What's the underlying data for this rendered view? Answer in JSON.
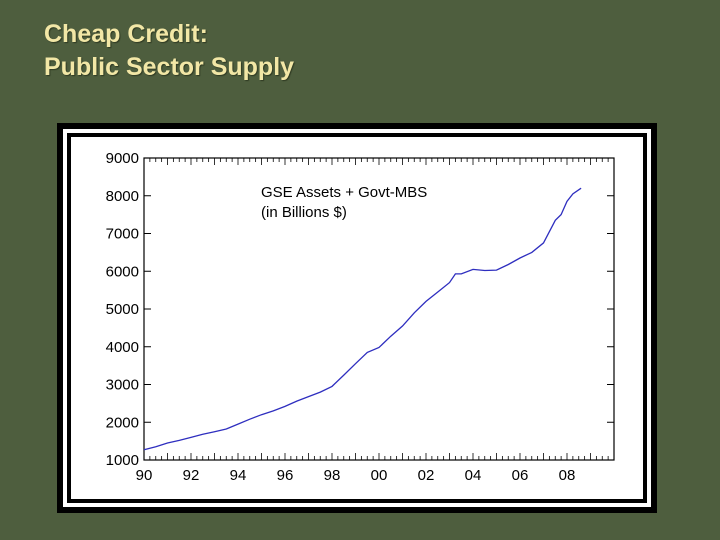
{
  "slide": {
    "title_line1": "Cheap Credit:",
    "title_line2": "Public Sector Supply"
  },
  "colors": {
    "background": "#4e5e3e",
    "title": "#f2e7a6",
    "series": "#2e2ebf"
  },
  "chart_data": {
    "type": "line",
    "title": "",
    "annotation_line1": "GSE Assets + Govt-MBS",
    "annotation_line2": "(in Billions $)",
    "xlabel": "",
    "ylabel": "",
    "xlim": [
      1990,
      2010
    ],
    "ylim": [
      1000,
      9000
    ],
    "yticks": [
      1000,
      2000,
      3000,
      4000,
      5000,
      6000,
      7000,
      8000,
      9000
    ],
    "xtick_labels": [
      {
        "x": 1990,
        "label": "90"
      },
      {
        "x": 1992,
        "label": "92"
      },
      {
        "x": 1994,
        "label": "94"
      },
      {
        "x": 1996,
        "label": "96"
      },
      {
        "x": 1998,
        "label": "98"
      },
      {
        "x": 2000,
        "label": "00"
      },
      {
        "x": 2002,
        "label": "02"
      },
      {
        "x": 2004,
        "label": "04"
      },
      {
        "x": 2006,
        "label": "06"
      },
      {
        "x": 2008,
        "label": "08"
      }
    ],
    "grid": false,
    "series": [
      {
        "x": [
          1990.0,
          1990.5,
          1991.0,
          1991.5,
          1992.0,
          1992.5,
          1993.0,
          1993.5,
          1994.0,
          1994.5,
          1995.0,
          1995.5,
          1996.0,
          1996.5,
          1997.0,
          1997.5,
          1998.0,
          1998.5,
          1999.0,
          1999.5,
          2000.0,
          2000.5,
          2001.0,
          2001.5,
          2002.0,
          2002.5,
          2003.0,
          2003.25,
          2003.5,
          2004.0,
          2004.5,
          2005.0,
          2005.5,
          2006.0,
          2006.5,
          2007.0,
          2007.5,
          2007.75,
          2008.0,
          2008.25,
          2008.6
        ],
        "y": [
          1270,
          1350,
          1450,
          1520,
          1600,
          1680,
          1750,
          1820,
          1950,
          2080,
          2200,
          2300,
          2420,
          2560,
          2680,
          2800,
          2950,
          3250,
          3550,
          3850,
          3980,
          4280,
          4550,
          4900,
          5200,
          5450,
          5700,
          5930,
          5930,
          6050,
          6020,
          6030,
          6180,
          6350,
          6500,
          6750,
          7350,
          7500,
          7850,
          8050,
          8200
        ]
      }
    ]
  }
}
